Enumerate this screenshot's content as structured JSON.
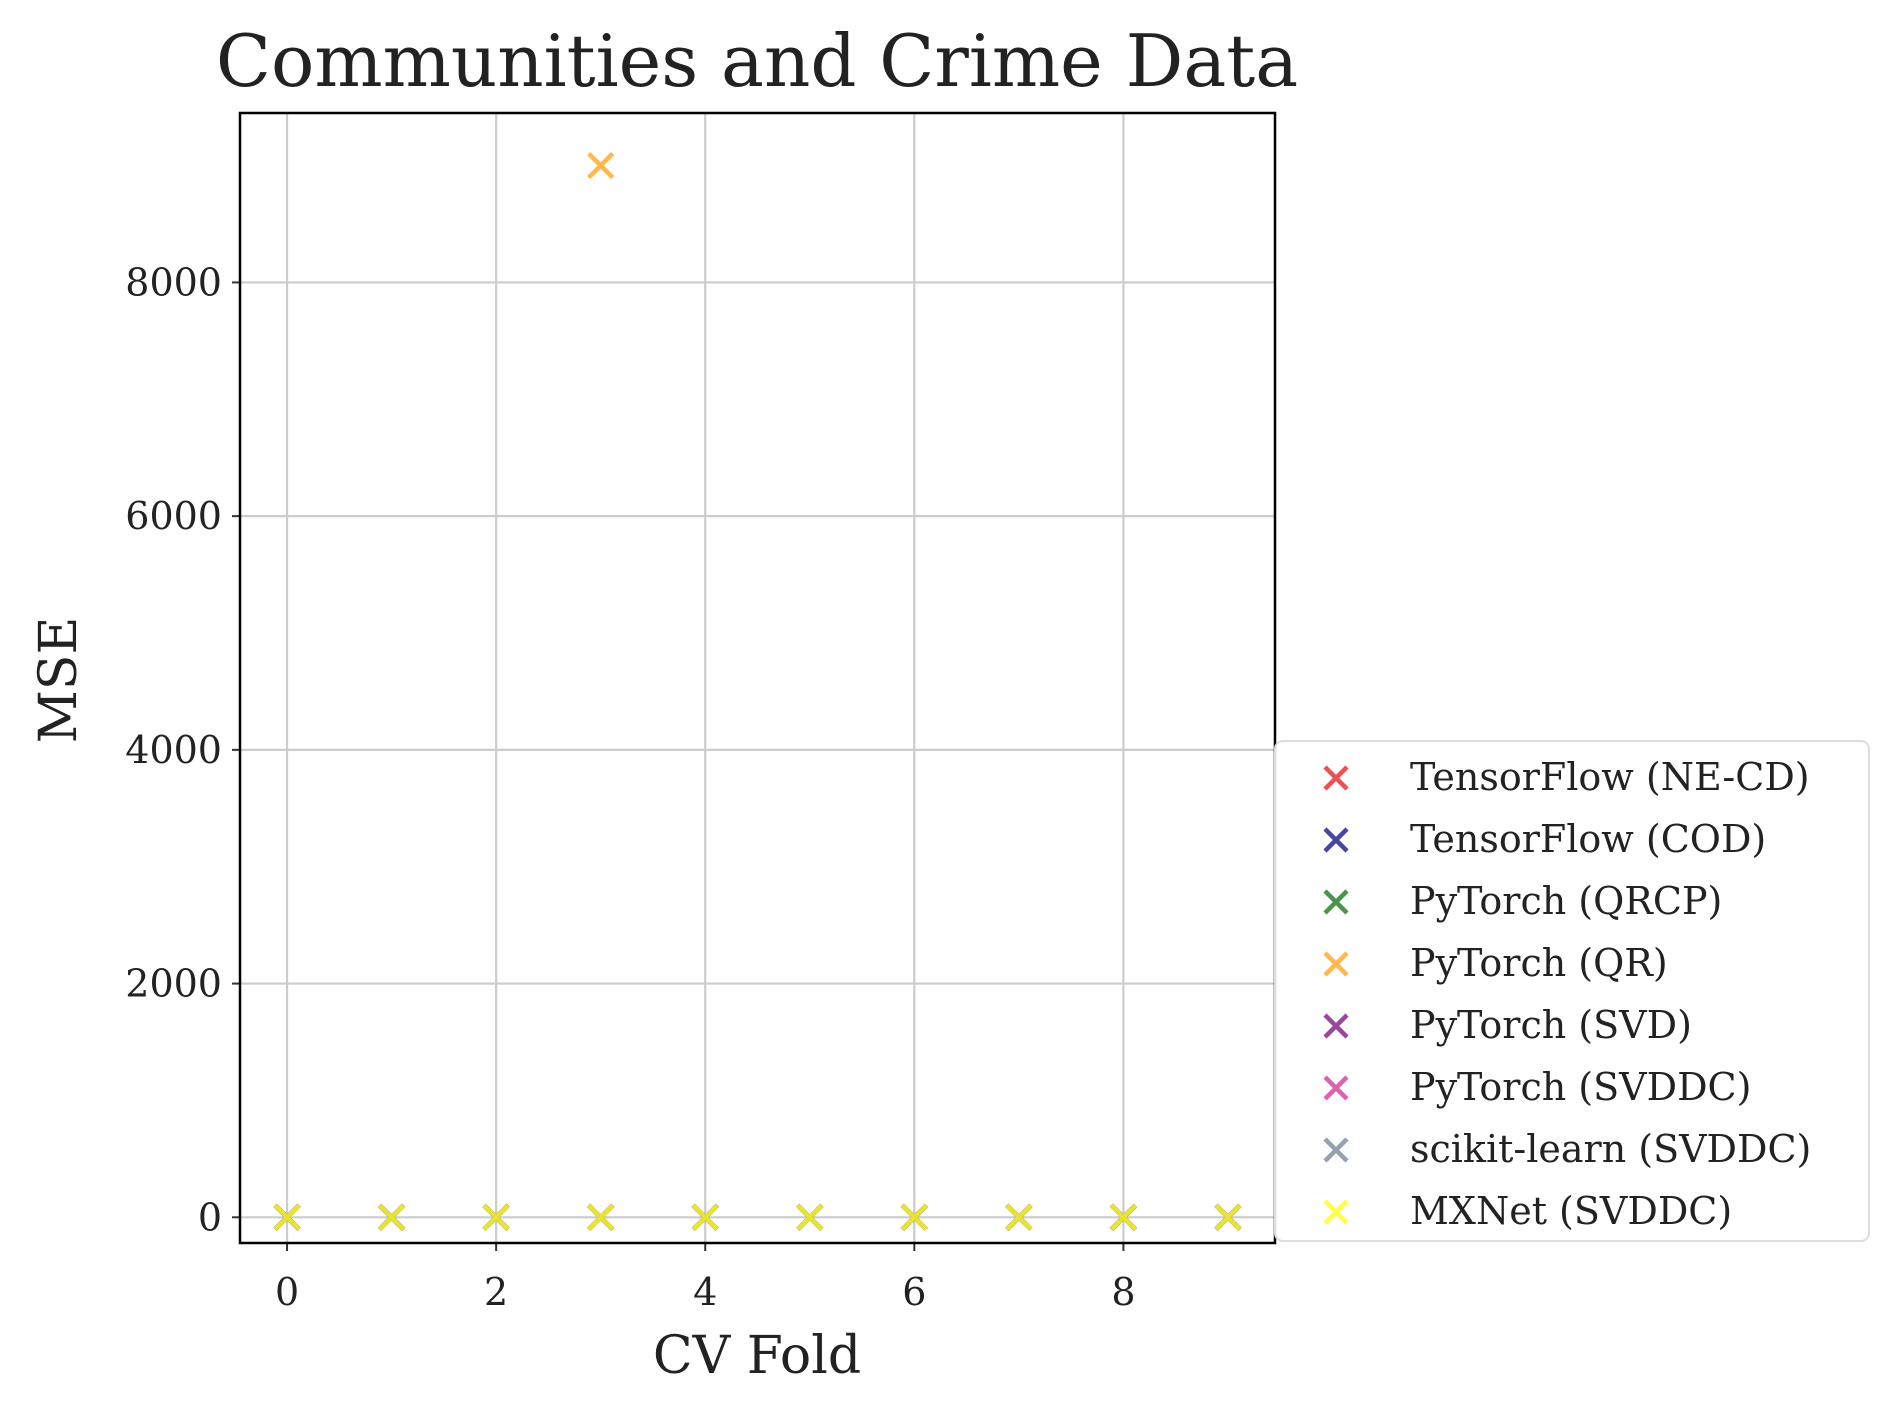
{
  "chart_data": {
    "type": "scatter",
    "title": "Communities and Crime Data",
    "xlabel": "CV Fold",
    "ylabel": "MSE",
    "xlim": [
      -0.45,
      9.45
    ],
    "ylim": [
      -220,
      9450
    ],
    "xticks": [
      0,
      2,
      4,
      6,
      8
    ],
    "xtick_labels": [
      "0",
      "2",
      "4",
      "6",
      "8"
    ],
    "yticks": [
      0,
      2000,
      4000,
      6000,
      8000
    ],
    "ytick_labels": [
      "0",
      "2000",
      "4000",
      "6000",
      "8000"
    ],
    "grid": true,
    "legend_position": "right, outside plot",
    "marker": "x",
    "series": [
      {
        "name": "TensorFlow (NE-CD)",
        "color": "#e8282a",
        "x": [
          0,
          1,
          2,
          3,
          4,
          5,
          6,
          7,
          8,
          9
        ],
        "y": [
          0,
          0,
          0,
          0,
          0,
          0,
          0,
          0,
          0,
          0
        ]
      },
      {
        "name": "TensorFlow (COD)",
        "color": "#1a1a8c",
        "x": [
          0,
          1,
          2,
          3,
          4,
          5,
          6,
          7,
          8,
          9
        ],
        "y": [
          0,
          0,
          0,
          0,
          0,
          0,
          0,
          0,
          0,
          0
        ]
      },
      {
        "name": "PyTorch (QRCP)",
        "color": "#1f7a1f",
        "x": [
          0,
          1,
          2,
          3,
          4,
          5,
          6,
          7,
          8,
          9
        ],
        "y": [
          0,
          0,
          0,
          0,
          0,
          0,
          0,
          0,
          0,
          0
        ]
      },
      {
        "name": "PyTorch (QR)",
        "color": "#ffa622",
        "x": [
          0,
          1,
          2,
          3,
          4,
          5,
          6,
          7,
          8,
          9
        ],
        "y": [
          0,
          0,
          0,
          9000,
          0,
          0,
          0,
          0,
          0,
          0
        ]
      },
      {
        "name": "PyTorch (SVD)",
        "color": "#7f1a84",
        "x": [
          0,
          1,
          2,
          3,
          4,
          5,
          6,
          7,
          8,
          9
        ],
        "y": [
          0,
          0,
          0,
          0,
          0,
          0,
          0,
          0,
          0,
          0
        ]
      },
      {
        "name": "PyTorch (SVDDC)",
        "color": "#d23ea0",
        "x": [
          0,
          1,
          2,
          3,
          4,
          5,
          6,
          7,
          8,
          9
        ],
        "y": [
          0,
          0,
          0,
          0,
          0,
          0,
          0,
          0,
          0,
          0
        ]
      },
      {
        "name": "scikit-learn (SVDDC)",
        "color": "#7c8b9c",
        "x": [
          0,
          1,
          2,
          3,
          4,
          5,
          6,
          7,
          8,
          9
        ],
        "y": [
          0,
          0,
          0,
          0,
          0,
          0,
          0,
          0,
          0,
          0
        ]
      },
      {
        "name": "MXNet (SVDDC)",
        "color": "#ffff19",
        "x": [
          0,
          1,
          2,
          3,
          4,
          5,
          6,
          7,
          8,
          9
        ],
        "y": [
          0,
          0,
          0,
          0,
          0,
          0,
          0,
          0,
          0,
          0
        ]
      }
    ]
  }
}
